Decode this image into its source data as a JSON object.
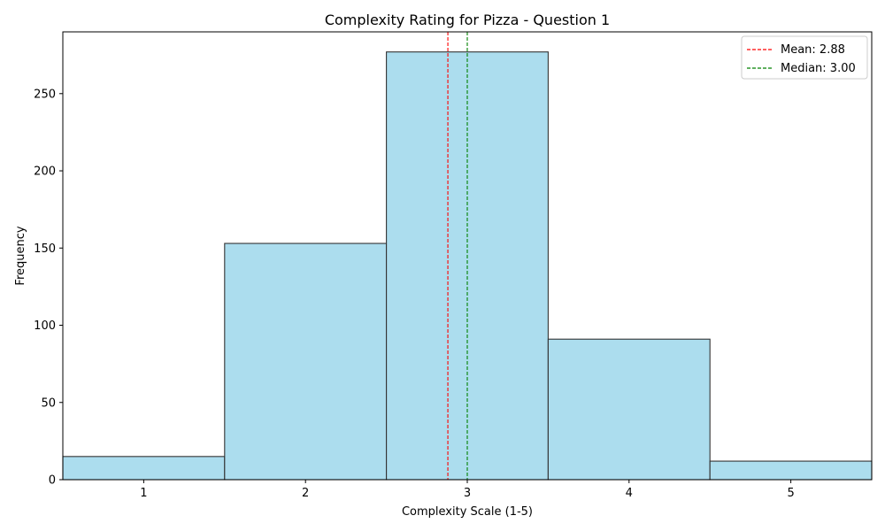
{
  "chart_data": {
    "type": "bar",
    "title": "Complexity Rating for Pizza - Question 1",
    "xlabel": "Complexity Scale (1-5)",
    "ylabel": "Frequency",
    "categories": [
      "1",
      "2",
      "3",
      "4",
      "5"
    ],
    "x": [
      1,
      2,
      3,
      4,
      5
    ],
    "values": [
      15,
      153,
      277,
      91,
      12
    ],
    "xlim": [
      0.5,
      5.5
    ],
    "ylim": [
      0,
      290
    ],
    "yticks": [
      0,
      50,
      100,
      150,
      200,
      250
    ],
    "ytick_labels": [
      "0",
      "50",
      "100",
      "150",
      "200",
      "250"
    ],
    "xtick_labels": [
      "1",
      "2",
      "3",
      "4",
      "5"
    ],
    "bar_color": "#a8dbed",
    "bar_edge_color": "#333333",
    "reference_lines": [
      {
        "name": "mean",
        "label": "Mean: 2.88",
        "value": 2.88,
        "color": "#ff0000",
        "style": "dashed"
      },
      {
        "name": "median",
        "label": "Median: 3.00",
        "value": 3.0,
        "color": "#008000",
        "style": "dashed"
      }
    ],
    "legend": {
      "position": "top-right",
      "entries": [
        "Mean: 2.88",
        "Median: 3.00"
      ]
    },
    "grid": false
  }
}
